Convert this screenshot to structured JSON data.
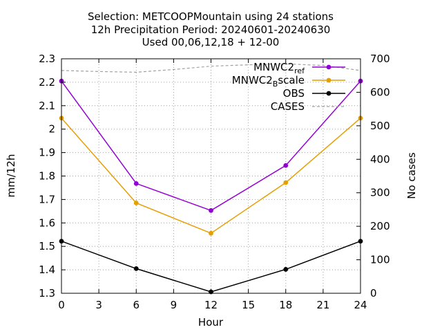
{
  "chart_data": {
    "type": "line",
    "title_lines": [
      "Selection: METCOOPMountain using    24 stations",
      "12h Precipitation   Period: 20240601-20240630",
      "Used 00,06,12,18 + 12-00"
    ],
    "xlabel": "Hour",
    "ylabel": "mm/12h",
    "y2label": "No cases",
    "x": [
      0,
      6,
      12,
      18,
      24
    ],
    "xlim": [
      0,
      24
    ],
    "xticks": [
      0,
      3,
      6,
      9,
      12,
      15,
      18,
      21,
      24
    ],
    "ylim": [
      1.3,
      2.3
    ],
    "yticks": [
      "1.3",
      "1.4",
      "1.5",
      "1.6",
      "1.7",
      "1.8",
      "1.9",
      "2",
      "2.1",
      "2.2",
      "2.3"
    ],
    "y2lim": [
      0,
      700
    ],
    "y2ticks": [
      0,
      100,
      200,
      300,
      400,
      500,
      600,
      700
    ],
    "grid": true,
    "legend_position": "top-right",
    "series": [
      {
        "name": "MNWC2ref",
        "legend_main": "MNWC2",
        "legend_sub": "ref",
        "color": "#9400d3",
        "axis": "y",
        "values": [
          2.205,
          1.768,
          1.653,
          1.845,
          2.205
        ]
      },
      {
        "name": "MNWC2Bscale",
        "legend_main": "MNWC2",
        "legend_sub": "B",
        "legend_tail": "scale",
        "color": "#e69f00",
        "axis": "y",
        "values": [
          2.047,
          1.685,
          1.556,
          1.772,
          2.047
        ]
      },
      {
        "name": "OBS",
        "legend_main": "OBS",
        "color": "#000000",
        "axis": "y",
        "values": [
          1.522,
          1.405,
          1.306,
          1.402,
          1.522
        ]
      },
      {
        "name": "CASES",
        "legend_main": "CASES",
        "color": "#a0a0a0",
        "axis": "y2",
        "dashed": true,
        "x": [
          0,
          3,
          6,
          9,
          12,
          15,
          18,
          21,
          24
        ],
        "values": [
          665,
          662,
          660,
          668,
          678,
          682,
          685,
          680,
          665
        ]
      }
    ]
  }
}
